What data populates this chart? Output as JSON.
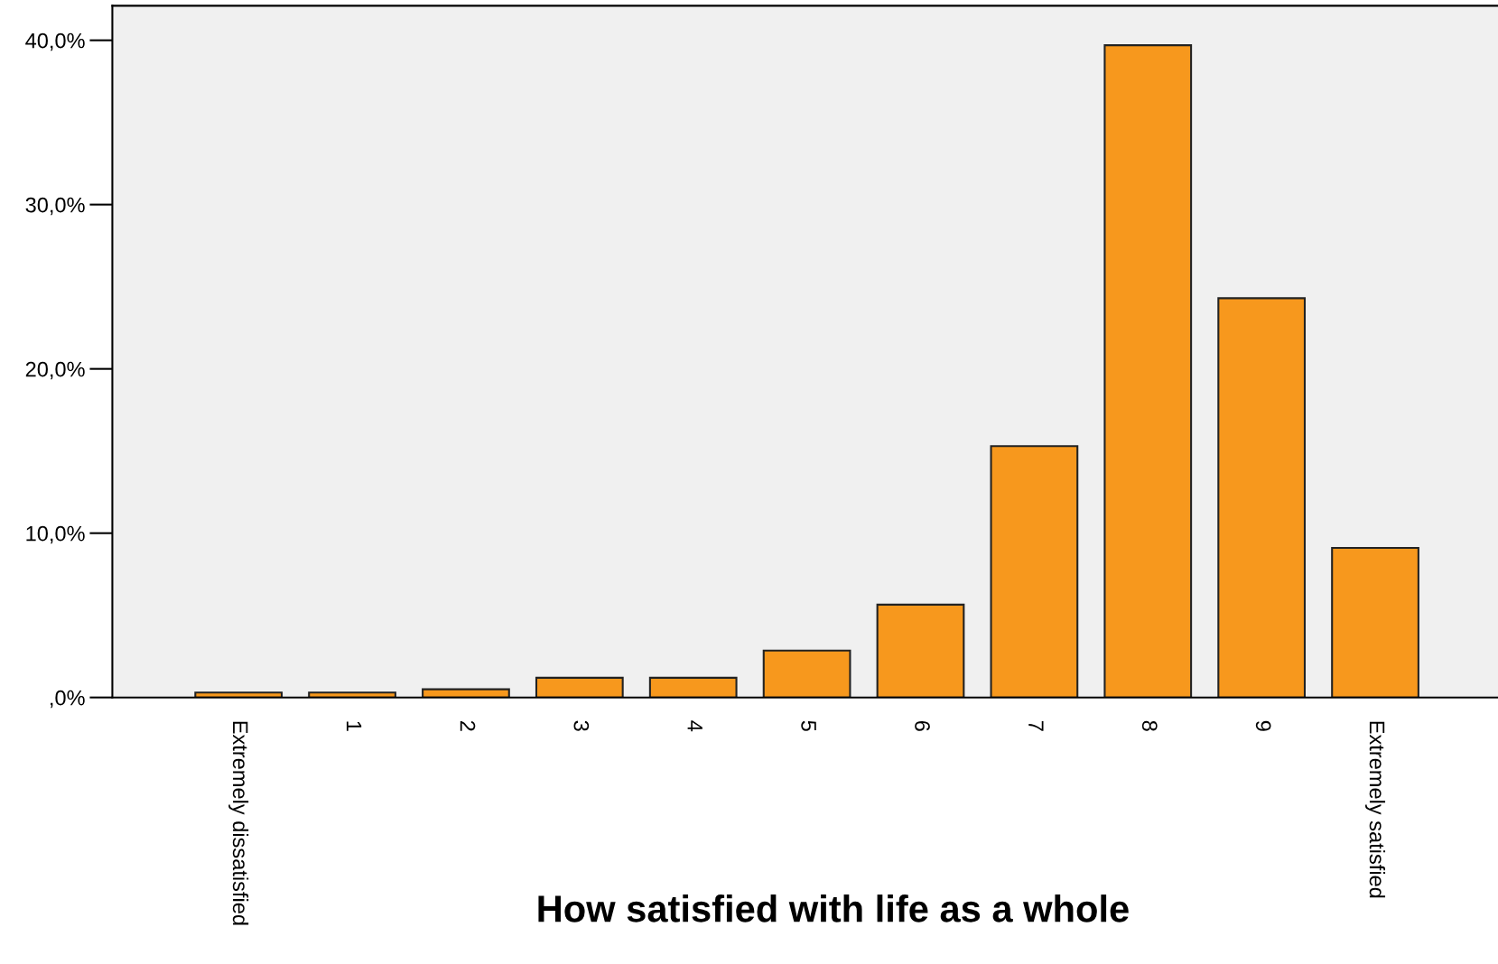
{
  "chart_data": {
    "type": "bar",
    "xlabel": "How satisfied with life as a whole",
    "categories": [
      "Extremely dissatisfied",
      "1",
      "2",
      "3",
      "4",
      "5",
      "6",
      "7",
      "8",
      "9",
      "Extremely satisfied"
    ],
    "values": [
      0.3,
      0.3,
      0.5,
      1.2,
      1.2,
      2.85,
      5.65,
      15.3,
      39.7,
      24.3,
      9.1
    ],
    "color": "#f7981d",
    "ylim": [
      0,
      42.1
    ],
    "yticks": [
      {
        "value": 0,
        "label": ",0%"
      },
      {
        "value": 10,
        "label": "10,0%"
      },
      {
        "value": 20,
        "label": "20,0%"
      },
      {
        "value": 30,
        "label": "30,0%"
      },
      {
        "value": 40,
        "label": "40,0%"
      }
    ],
    "grid": false
  }
}
